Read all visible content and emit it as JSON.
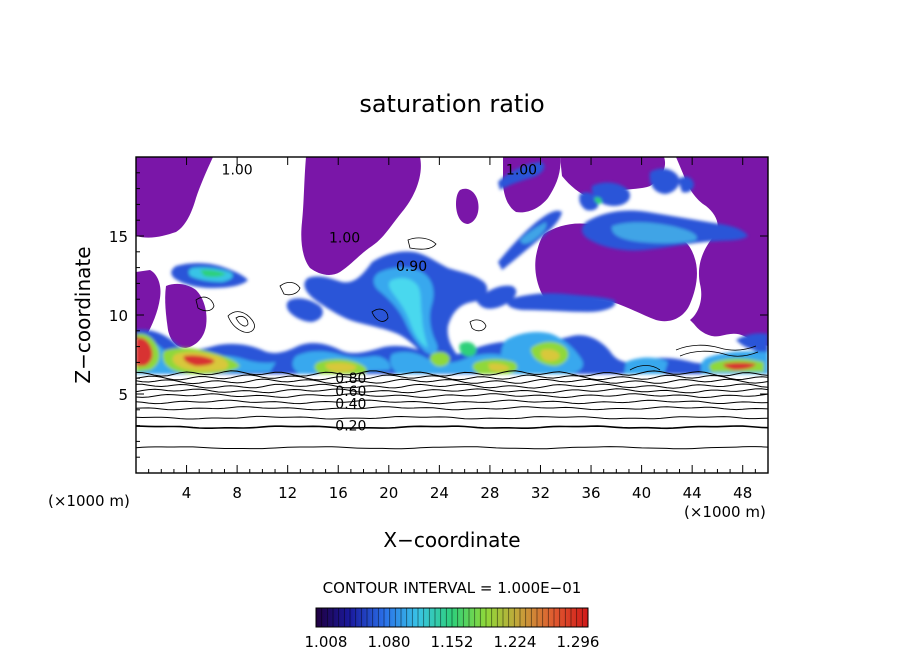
{
  "chart_data": {
    "type": "heatmap",
    "title": "saturation ratio",
    "xlabel": "X−coordinate",
    "ylabel": "Z−coordinate",
    "x_unit_left": "(×1000 m)",
    "x_unit_right": "(×1000 m)",
    "xlim": [
      0,
      50
    ],
    "ylim": [
      0,
      20
    ],
    "x_ticks": [
      4,
      8,
      12,
      16,
      20,
      24,
      28,
      32,
      36,
      40,
      44,
      48
    ],
    "x_tick_labels": [
      "4",
      "8",
      "12",
      "16",
      "20",
      "24",
      "28",
      "32",
      "36",
      "40",
      "44",
      "48"
    ],
    "y_ticks": [
      5,
      10,
      15
    ],
    "y_tick_labels": [
      "5",
      "10",
      "15"
    ],
    "contour_interval_text": "CONTOUR INTERVAL = 1.000E−01",
    "contour_labels": [
      {
        "text": "1.00",
        "x": 8.0,
        "y": 19.2
      },
      {
        "text": "1.00",
        "x": 30.5,
        "y": 19.2
      },
      {
        "text": "1.00",
        "x": 16.5,
        "y": 14.9
      },
      {
        "text": "0.90",
        "x": 21.8,
        "y": 13.1
      },
      {
        "text": "0.80",
        "x": 17.0,
        "y": 6.0
      },
      {
        "text": "0.60",
        "x": 17.0,
        "y": 5.2
      },
      {
        "text": "0.40",
        "x": 17.0,
        "y": 4.4
      },
      {
        "text": "0.20",
        "x": 17.0,
        "y": 3.0
      }
    ],
    "colorbar": {
      "min": 1.008,
      "max": 1.296,
      "tick_labels": [
        "1.008",
        "1.080",
        "1.152",
        "1.224",
        "1.296"
      ],
      "colors": [
        "#200040",
        "#1a1a9e",
        "#2a6fe8",
        "#39c4e6",
        "#2fd07a",
        "#8fd83a",
        "#c6a23a",
        "#e05a30",
        "#d01818"
      ]
    },
    "colors": {
      "base": "#7a16a8",
      "blue": "#2c54d8",
      "light_blue": "#38a8ee",
      "cyan": "#4ad8ee",
      "green": "#3ec870",
      "yellow": "#d8c83a",
      "red": "#d83030"
    }
  }
}
